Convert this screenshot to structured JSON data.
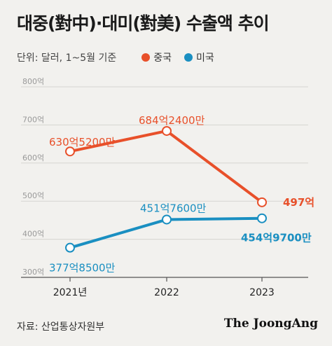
{
  "title": "대중(對中)·대미(對美) 수출액 추이",
  "unit_note": "단위: 달러, 1~5월 기준",
  "source": "자료: 산업통상자원부",
  "brand": "The JoongAng",
  "colors": {
    "china": "#e8502a",
    "usa": "#1a8fc1",
    "grid": "#d6d5d1",
    "axis": "#555555"
  },
  "chart_data": {
    "type": "line",
    "x": [
      "2021년",
      "2022",
      "2023"
    ],
    "y_tick_labels": [
      "300억",
      "400억",
      "500억",
      "600억",
      "700억",
      "800억"
    ],
    "ylim": [
      300,
      800
    ],
    "grid": true,
    "legend_position": "top",
    "series": [
      {
        "name": "중국",
        "color": "#e8502a",
        "values": [
          630.52,
          684.24,
          497
        ],
        "labels": [
          "630억5200만",
          "684억2400만",
          "497억"
        ]
      },
      {
        "name": "미국",
        "color": "#1a8fc1",
        "values": [
          377.85,
          451.76,
          454.97
        ],
        "labels": [
          "377억8500만",
          "451억7600만",
          "454억9700만"
        ]
      }
    ]
  }
}
